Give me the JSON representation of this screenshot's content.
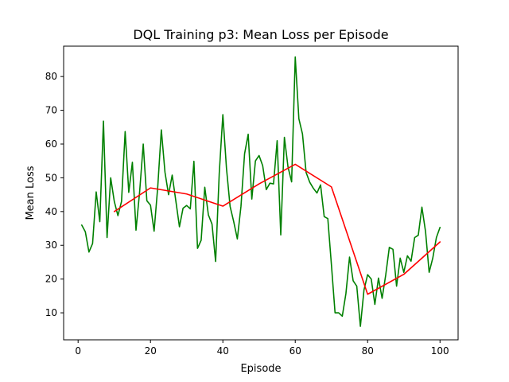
{
  "chart_data": {
    "type": "line",
    "title": "DQL Training p3: Mean Loss per Episode",
    "xlabel": "Episode",
    "ylabel": "Mean Loss",
    "xlim": [
      -4,
      105
    ],
    "ylim": [
      2,
      89
    ],
    "xticks": [
      0,
      20,
      40,
      60,
      80,
      100
    ],
    "yticks": [
      10,
      20,
      30,
      40,
      50,
      60,
      70,
      80
    ],
    "grid": false,
    "legend": "none",
    "series": [
      {
        "color": "#008000",
        "x": [
          1,
          2,
          3,
          4,
          5,
          6,
          7,
          8,
          9,
          10,
          11,
          12,
          13,
          14,
          15,
          16,
          17,
          18,
          19,
          20,
          21,
          22,
          23,
          24,
          25,
          26,
          27,
          28,
          29,
          30,
          31,
          32,
          33,
          34,
          35,
          36,
          37,
          38,
          39,
          40,
          41,
          42,
          43,
          44,
          45,
          46,
          47,
          48,
          49,
          50,
          51,
          52,
          53,
          54,
          55,
          56,
          57,
          58,
          59,
          60,
          61,
          62,
          63,
          64,
          65,
          66,
          67,
          68,
          69,
          70,
          71,
          72,
          73,
          74,
          75,
          76,
          77,
          78,
          79,
          80,
          81,
          82,
          83,
          84,
          85,
          86,
          87,
          88,
          89,
          90,
          91,
          92,
          93,
          94,
          95,
          96,
          97,
          98,
          99,
          100
        ],
        "y": [
          36,
          34,
          28,
          30.5,
          45.8,
          37,
          66.8,
          32.3,
          50,
          43,
          38.8,
          43,
          63.7,
          45.7,
          54.6,
          34.5,
          45.8,
          60,
          43.2,
          41.9,
          34.2,
          47.2,
          64.2,
          51.7,
          45,
          50.8,
          43.2,
          35.5,
          41,
          41.8,
          40.8,
          54.9,
          29.1,
          31.5,
          47.2,
          39,
          36.3,
          25.2,
          51.3,
          68.7,
          52.8,
          41.5,
          37,
          31.9,
          41.5,
          57.1,
          62.9,
          43.7,
          55,
          56.6,
          53.6,
          46.5,
          48.4,
          48.2,
          61,
          33.1,
          62,
          53.2,
          48.8,
          85.8,
          67.5,
          63,
          51.6,
          48.7,
          46.9,
          45.5,
          47.9,
          38.5,
          37.9,
          24.2,
          10,
          10,
          9,
          15.7,
          26.5,
          19.5,
          17.9,
          6,
          16.8,
          21.3,
          20,
          12.5,
          20.3,
          14.3,
          21.2,
          29.4,
          28.8,
          17.9,
          26.2,
          22,
          26.9,
          25.3,
          32.3,
          33,
          41.3,
          34.1,
          22,
          26.2,
          32.3,
          35.3
        ]
      },
      {
        "color": "#ff0000",
        "x": [
          10,
          20,
          30,
          40,
          50,
          60,
          70,
          80,
          90,
          100
        ],
        "y": [
          40,
          47,
          45.2,
          41.6,
          48.2,
          54,
          47.3,
          15.5,
          21.4,
          31
        ]
      }
    ]
  }
}
